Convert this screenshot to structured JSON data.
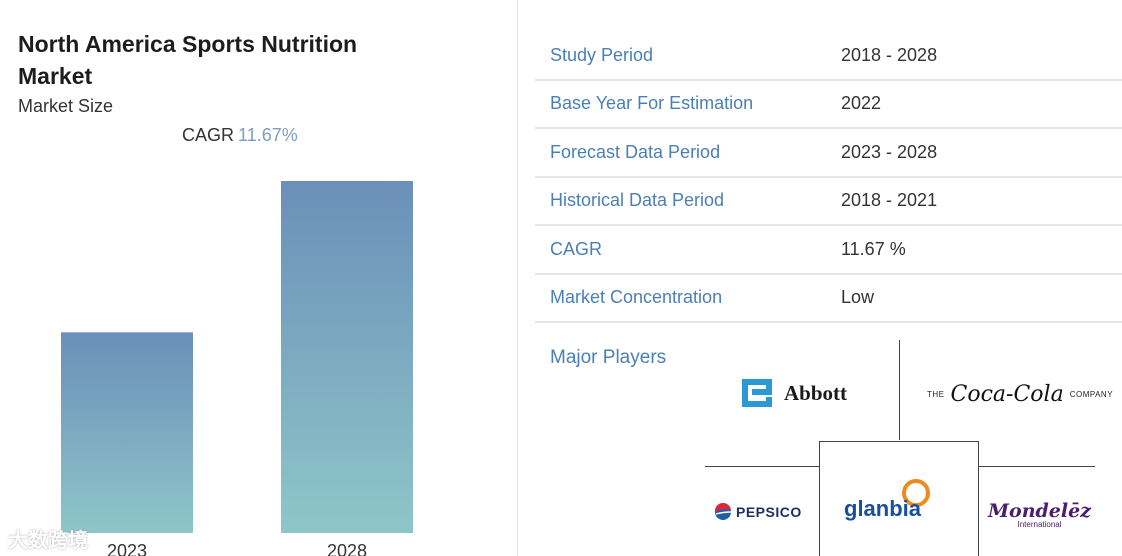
{
  "header": {
    "title": "North America Sports Nutrition Market",
    "subtitle": "Market Size",
    "cagr_label": "CAGR",
    "cagr_value": "11.67%"
  },
  "chart_data": {
    "type": "bar",
    "categories": [
      "2023",
      "2028"
    ],
    "values": [
      0.57,
      1.0
    ],
    "title": "",
    "xlabel": "",
    "ylabel": "",
    "colors": {
      "top": "#6b8fb9",
      "bottom": "#8ec6c8"
    }
  },
  "table": {
    "rows": [
      {
        "key": "Study Period",
        "value": "2018 - 2028"
      },
      {
        "key": "Base Year For Estimation",
        "value": "2022"
      },
      {
        "key": "Forecast Data Period",
        "value": "2023 - 2028"
      },
      {
        "key": "Historical Data Period",
        "value": "2018 - 2021"
      },
      {
        "key": "CAGR",
        "value": "11.67 %"
      },
      {
        "key": "Market Concentration",
        "value": "Low"
      }
    ]
  },
  "players": {
    "label": "Major Players",
    "abbott": "Abbott",
    "coca_cola_the": "THE",
    "coca_cola_name": "Coca-Cola",
    "coca_cola_company": "COMPANY",
    "pepsico": "PEPSICO",
    "glanbia": "glanbia",
    "mondelez": "Mondelēz",
    "mondelez_sub": "International"
  },
  "watermark": "大数跨境",
  "colors": {
    "accent": "#4a7fb8",
    "cagr_value": "#7a9ec4"
  }
}
